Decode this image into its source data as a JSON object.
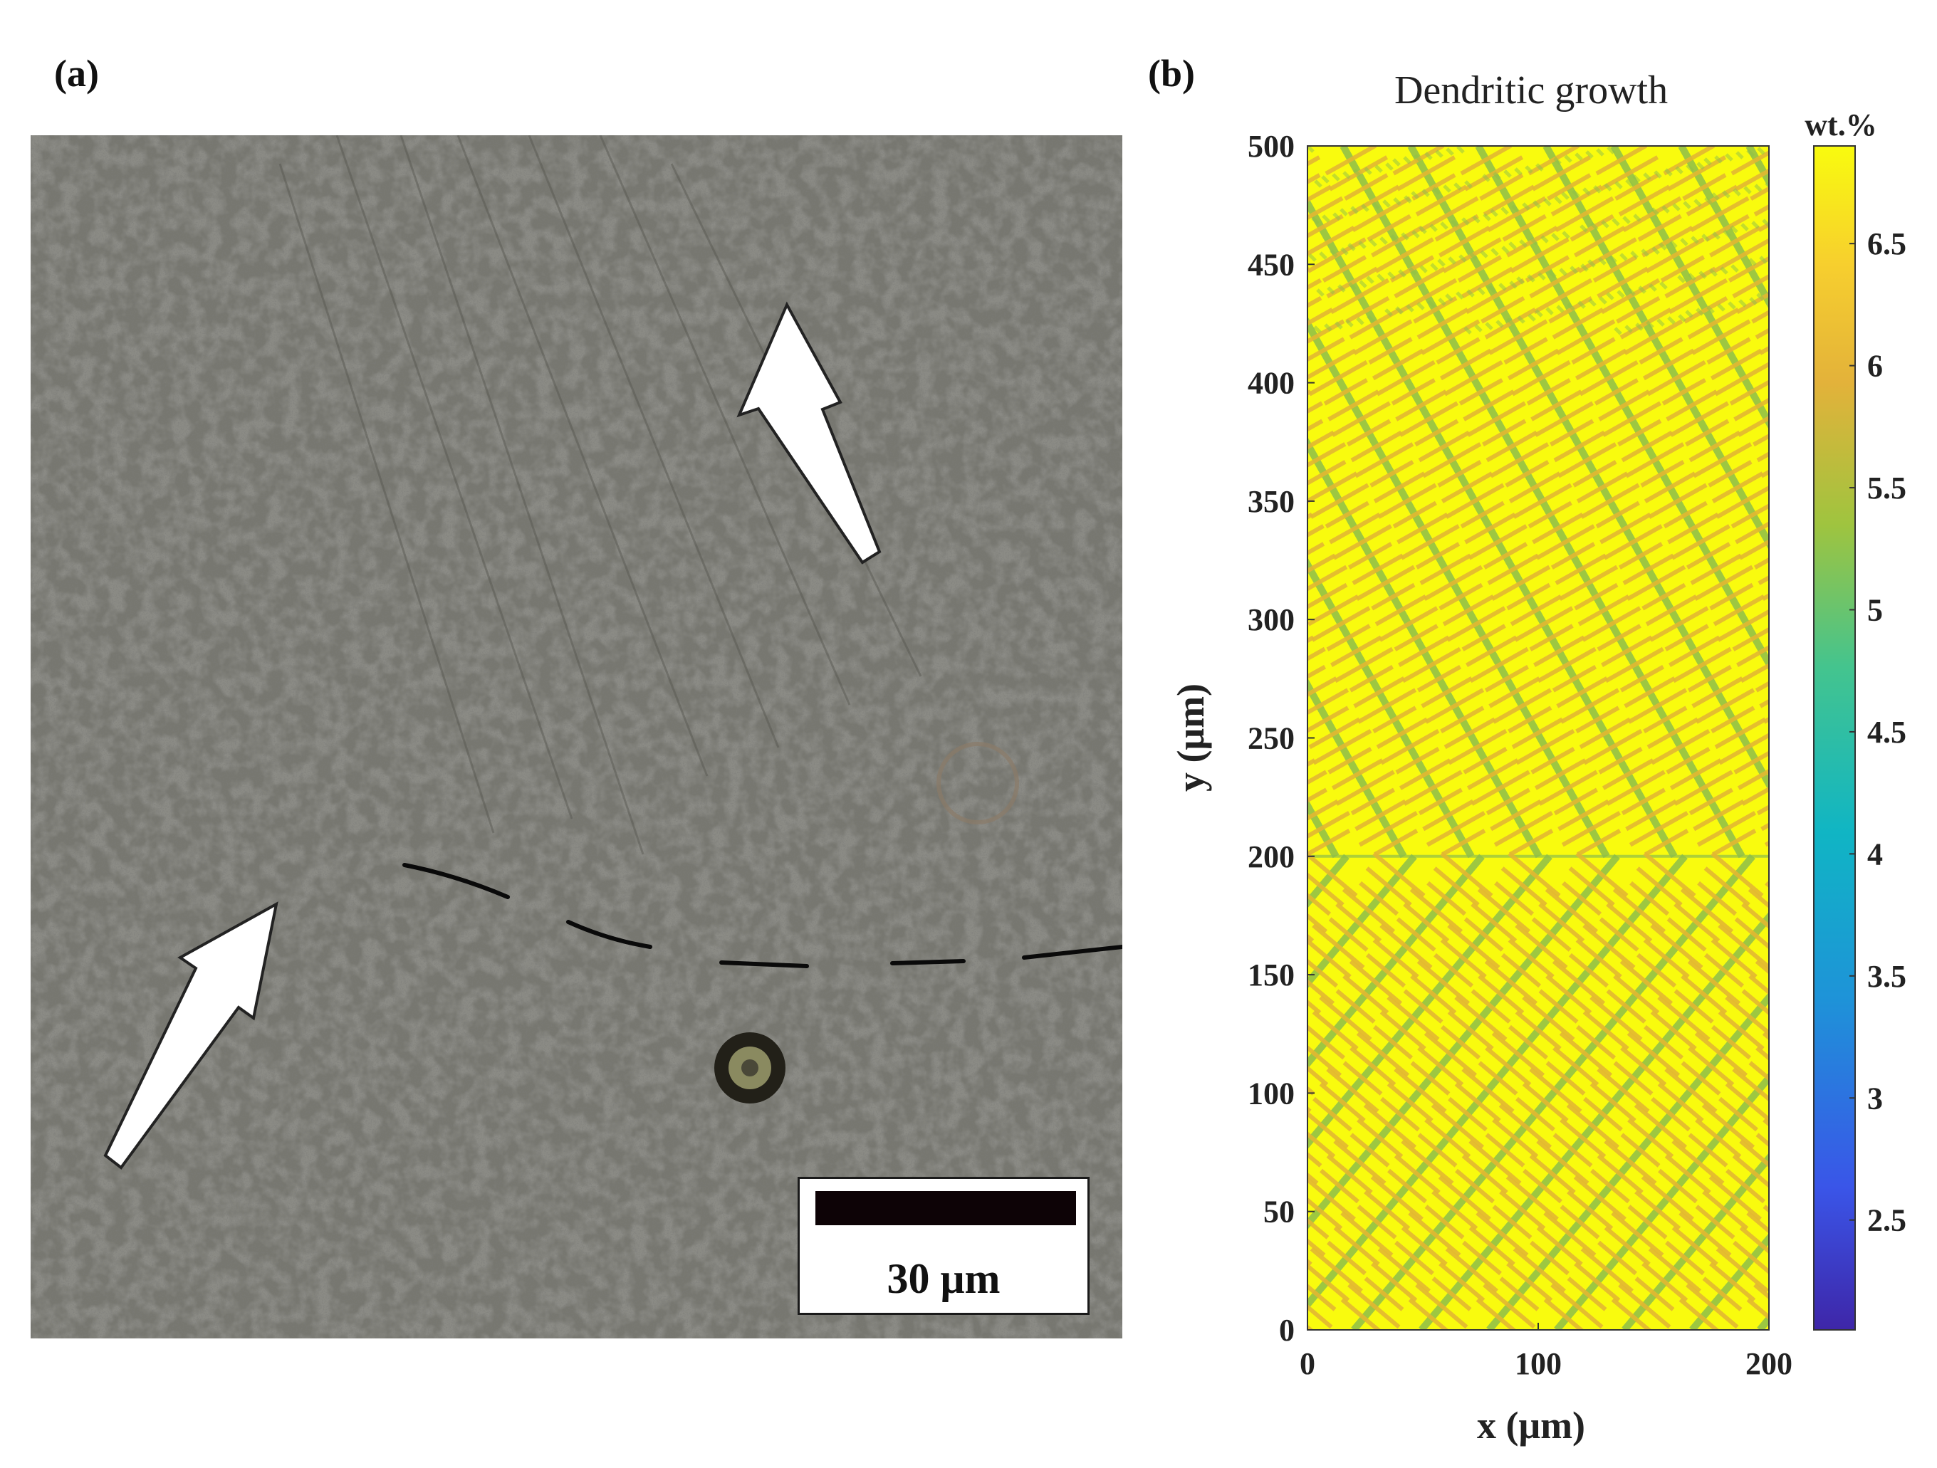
{
  "panel_a": {
    "label": "(a)",
    "scale_bar": "30 μm"
  },
  "panel_b": {
    "label": "(b)"
  },
  "chart_data": {
    "type": "heatmap",
    "title": "Dendritic growth",
    "xlabel": "x (μm)",
    "ylabel": "y (μm)",
    "xlim": [
      0,
      200
    ],
    "ylim": [
      0,
      500
    ],
    "xticks": [
      "0",
      "100",
      "200"
    ],
    "yticks": [
      "0",
      "50",
      "100",
      "150",
      "200",
      "250",
      "300",
      "350",
      "400",
      "450",
      "500"
    ],
    "colorbar": {
      "label": "wt.%",
      "range": [
        2.05,
        6.9
      ],
      "ticks": [
        "2.5",
        "3",
        "3.5",
        "4",
        "4.5",
        "5",
        "5.5",
        "6",
        "6.5"
      ]
    },
    "colors": {
      "high": "#f9fb0e",
      "mid_high": "#e2b732",
      "mid": "#8ebf4a",
      "low": "#3e26a8"
    },
    "grain_boundary_y": 200
  }
}
